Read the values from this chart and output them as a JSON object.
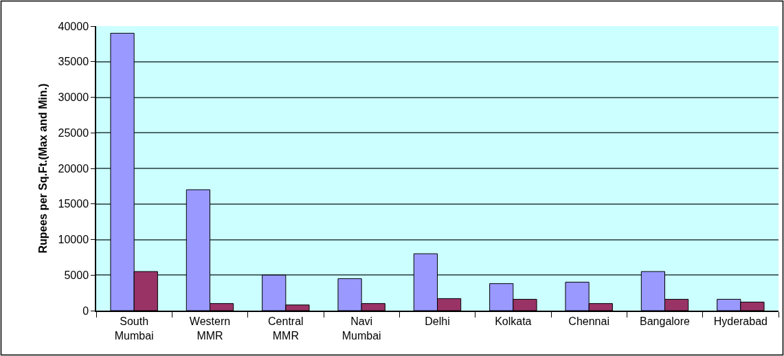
{
  "chart_data": {
    "type": "bar",
    "ylabel": "Rupees per Sq.Ft.(Max and Min.)",
    "categories": [
      "South Mumbai",
      "Western MMR",
      "Central MMR",
      "Navi Mumbai",
      "Delhi",
      "Kolkata",
      "Chennai",
      "Bangalore",
      "Hyderabad"
    ],
    "series": [
      {
        "color": "#9999ff",
        "values": [
          39000,
          17000,
          5000,
          4500,
          8000,
          3800,
          4000,
          5500,
          1600
        ]
      },
      {
        "color": "#993366",
        "values": [
          5500,
          1000,
          800,
          1000,
          1700,
          1600,
          1000,
          1600,
          1200
        ]
      }
    ],
    "ylim": [
      0,
      40000
    ],
    "yticks": [
      0,
      5000,
      10000,
      15000,
      20000,
      25000,
      30000,
      35000,
      40000
    ],
    "grid": "y"
  }
}
